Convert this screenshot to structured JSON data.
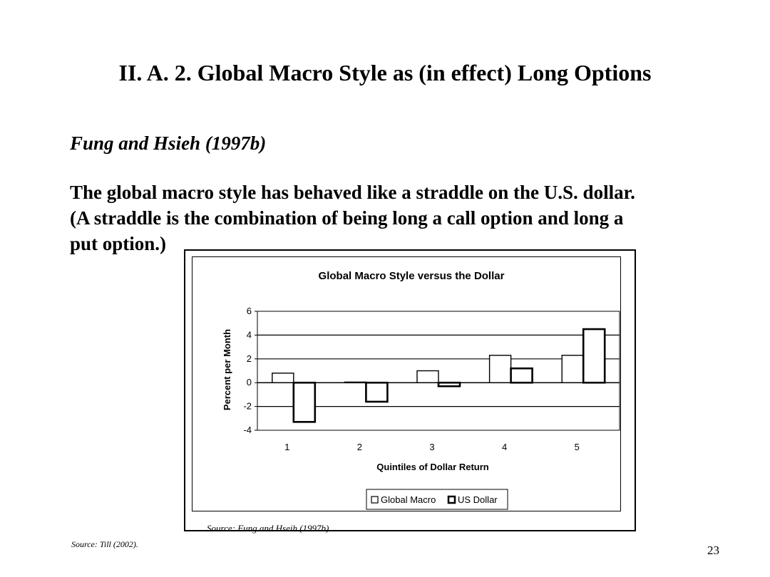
{
  "slide": {
    "title": "II.  A.  2.  Global Macro Style as (in effect) Long Options",
    "subtitle": "Fung and Hsieh (1997b)",
    "body_lines": [
      "The global macro style has behaved like a straddle on the U.S. dollar.",
      "(A straddle is the combination of being long a call option and long a",
      "put option.)"
    ],
    "figure_source": "Source:  Fung and Hseih (1997b).",
    "slide_source": "Source:  Till (2002).",
    "page_number": "23"
  },
  "chart_data": {
    "type": "bar",
    "title": "Global Macro Style versus the Dollar",
    "xlabel": "Quintiles of Dollar Return",
    "ylabel": "Percent per Month",
    "categories": [
      "1",
      "2",
      "3",
      "4",
      "5"
    ],
    "series": [
      {
        "name": "Global Macro",
        "values": [
          0.8,
          0.05,
          1.0,
          2.3,
          2.3
        ]
      },
      {
        "name": "US Dollar",
        "values": [
          -3.3,
          -1.6,
          -0.3,
          1.2,
          4.5
        ]
      }
    ],
    "ylim": [
      -4,
      6
    ],
    "yticks": [
      "6",
      "4",
      "2",
      "0",
      "-2",
      "-4"
    ],
    "grid": true,
    "legend_position": "bottom"
  }
}
